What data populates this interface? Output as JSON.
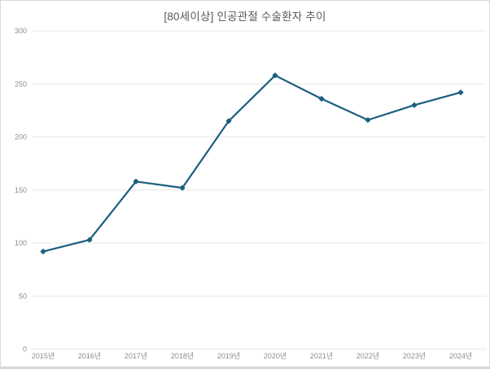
{
  "chart": {
    "title": "[80세이상] 인공관절 수술환자 추이"
  },
  "chart_data": {
    "type": "line",
    "title": "[80세이상] 인공관절 수술환자 추이",
    "categories": [
      "2015년",
      "2016년",
      "2017년",
      "2018년",
      "2019년",
      "2020년",
      "2021년",
      "2022년",
      "2023년",
      "2024년"
    ],
    "values": [
      92,
      103,
      158,
      152,
      215,
      258,
      236,
      216,
      230,
      242
    ],
    "xlabel": "",
    "ylabel": "",
    "ylim": [
      0,
      300
    ],
    "ytick_step": 50,
    "yticks": [
      0,
      50,
      100,
      150,
      200,
      250,
      300
    ],
    "grid": true,
    "legend": "none",
    "colors": {
      "line": "#1A5F7F",
      "marker": "#1A5F7F",
      "gridline": "#E7E7E7",
      "axis_labels": "#8C8C8C",
      "title": "#595959",
      "background": "#FFFFFF",
      "frame_border": "#D9D9D9"
    }
  }
}
